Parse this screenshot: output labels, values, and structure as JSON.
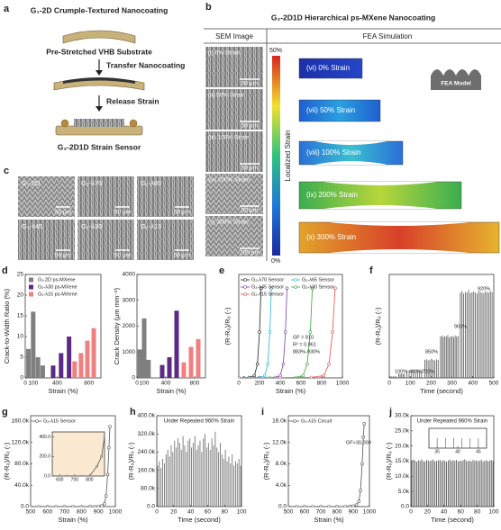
{
  "figure": {
    "a": {
      "label": "a",
      "title": "G₁-2D Crumple-Textured Nanocoating",
      "substrate": "Pre-Stretched VHB Substrate",
      "step1": "Transfer Nanocoating",
      "step2": "Release Strain",
      "result": "G₂-2D1D Strain Sensor"
    },
    "b": {
      "label": "b",
      "title": "G₂-2D1D Hierarchical ps-MXene Nanocoating",
      "sem_header": "SEM Image",
      "fea_header": "FEA Simulation",
      "sem": [
        {
          "label": "(i) 0% Strain",
          "scale": "50 μm"
        },
        {
          "label": "(ii) 50% Strain",
          "scale": "50 μm"
        },
        {
          "label": "(iii) 100% Strain",
          "scale": "50 μm"
        },
        {
          "label": "(iv) 200% Strain",
          "scale": "50 μm"
        },
        {
          "label": "(v) 300% Strain",
          "scale": "200 μm"
        }
      ],
      "colorbar": {
        "title": "Localized Strain",
        "max": "50%",
        "min": "0%"
      },
      "fea": [
        "(vi) 0% Strain",
        "(vii) 50% Strain",
        "(viii) 100% Strain",
        "(ix) 200% Strain",
        "(x) 300% Strain"
      ],
      "model": "FEA Model"
    },
    "c": {
      "label": "c",
      "images": [
        {
          "label": "G₁-2D",
          "scale": "50 μm"
        },
        {
          "label": "G₂-λ70",
          "scale": "50 μm"
        },
        {
          "label": "G₂-λ65",
          "scale": "50 μm"
        },
        {
          "label": "G₂-λ45",
          "scale": "50 μm"
        },
        {
          "label": "G₂-λ30",
          "scale": "50 μm"
        },
        {
          "label": "G₂-λ15",
          "scale": "50 μm"
        }
      ]
    }
  },
  "chart_data": [
    {
      "type": "bar",
      "panel": "d",
      "ylabel": "Crack-to-Width Ratio (%)",
      "xlabel": "Strain (%)",
      "xlim": [
        0,
        950
      ],
      "xticks": [
        0,
        100,
        400,
        800
      ],
      "ylim": [
        0,
        25
      ],
      "yticks": [
        0,
        5,
        10,
        15,
        20,
        25
      ],
      "series": [
        {
          "name": "G₁-2D ps-MXene",
          "color": "#7f7f7f",
          "x": [
            40,
            100,
            160,
            220
          ],
          "values": [
            7,
            16,
            5,
            3
          ]
        },
        {
          "name": "G₂-λ30 ps-MXene",
          "color": "#5b2a86",
          "x": [
            350,
            450,
            550
          ],
          "values": [
            3,
            6,
            10
          ]
        },
        {
          "name": "G₂-λ15 ps-MXene",
          "color": "#f08080",
          "x": [
            620,
            700,
            780,
            860
          ],
          "values": [
            4,
            6,
            9,
            12
          ]
        }
      ]
    },
    {
      "type": "bar",
      "ylabel": "Crack Density (μm mm⁻²)",
      "xlabel": "Strain (%)",
      "xlim": [
        0,
        950
      ],
      "xticks": [
        0,
        100,
        400,
        800
      ],
      "ylim": [
        0,
        4000
      ],
      "yticks": [
        0,
        1000,
        2000,
        3000,
        4000
      ],
      "series": [
        {
          "color": "#7f7f7f",
          "x": [
            40,
            100,
            160
          ],
          "values": [
            1100,
            2300,
            700
          ]
        },
        {
          "color": "#5b2a86",
          "x": [
            350,
            450,
            550
          ],
          "values": [
            500,
            800,
            2600
          ]
        },
        {
          "color": "#f08080",
          "x": [
            650,
            750,
            850
          ],
          "values": [
            600,
            1200,
            1500
          ]
        }
      ]
    },
    {
      "type": "line",
      "panel": "e",
      "ylabel": "(R-R₀)/R₀ (-)",
      "xlabel": "Strain (%)",
      "xlim": [
        0,
        1000
      ],
      "xticks": [
        0,
        200,
        400,
        600,
        800,
        1000
      ],
      "ylim": [
        0,
        450
      ],
      "annotations": [
        "GF = 810",
        "R² = 0.961",
        "883%-930%"
      ],
      "series": [
        {
          "name": "G₂-λ70 Sensor",
          "color": "#222222",
          "x": [
            0,
            50,
            100,
            150,
            180,
            200,
            215
          ],
          "values": [
            0,
            0,
            2,
            10,
            60,
            200,
            390
          ]
        },
        {
          "name": "G₂-λ65 Sensor",
          "color": "#29b6d6",
          "x": [
            0,
            100,
            200,
            250,
            280,
            300,
            315
          ],
          "values": [
            0,
            0,
            2,
            10,
            60,
            200,
            390
          ]
        },
        {
          "name": "G₂-λ45 Sensor",
          "color": "#7b3fa0",
          "x": [
            0,
            200,
            350,
            400,
            430,
            450,
            465
          ],
          "values": [
            0,
            0,
            2,
            10,
            60,
            200,
            390
          ]
        },
        {
          "name": "G₂-λ30 Sensor",
          "color": "#3aa63a",
          "x": [
            0,
            300,
            550,
            620,
            660,
            690,
            710
          ],
          "values": [
            0,
            0,
            2,
            10,
            60,
            200,
            390
          ]
        },
        {
          "name": "G₂-λ15 Sensor",
          "color": "#e0504a",
          "x": [
            0,
            400,
            700,
            820,
            870,
            905,
            930
          ],
          "values": [
            0,
            0,
            2,
            10,
            60,
            200,
            390
          ]
        }
      ]
    },
    {
      "type": "spikes",
      "panel": "f",
      "ylabel": "(R-R₀)/R₀ (-)",
      "xlabel": "Time (second)",
      "xlim": [
        0,
        500
      ],
      "xticks": [
        0,
        100,
        200,
        300,
        400,
        500
      ],
      "ylim": [
        0,
        200
      ],
      "annotations": [
        "100%",
        "400%",
        "700%",
        "850%",
        "900%",
        "920%"
      ],
      "series": [
        {
          "color": "#666666",
          "x": [
            5,
            12,
            19,
            26,
            33,
            45,
            52,
            59,
            66,
            73,
            85,
            95,
            105,
            115,
            125,
            135,
            145,
            155,
            170,
            178,
            186,
            194,
            202,
            210,
            218,
            226,
            234,
            245,
            252,
            259,
            266,
            273,
            280,
            287,
            294,
            301,
            308,
            315,
            322,
            329,
            340,
            348,
            356,
            364,
            372,
            380,
            388,
            396,
            404,
            412,
            420,
            428,
            436,
            444,
            452,
            460,
            468,
            476,
            484,
            492
          ],
          "values": [
            3,
            3,
            3,
            3,
            3,
            8,
            8,
            8,
            8,
            8,
            15,
            15,
            15,
            15,
            15,
            15,
            15,
            15,
            35,
            36,
            34,
            35,
            37,
            35,
            34,
            36,
            35,
            80,
            82,
            79,
            81,
            80,
            83,
            78,
            80,
            81,
            79,
            82,
            80,
            81,
            165,
            168,
            163,
            166,
            165,
            170,
            164,
            166,
            167,
            165,
            163,
            168,
            166,
            165,
            164,
            167,
            166,
            165,
            168,
            166
          ]
        }
      ]
    },
    {
      "type": "line",
      "panel": "g",
      "ylabel": "(R-R₀)/R₀ (-)",
      "xlabel": "Strain (%)",
      "xlim": [
        500,
        1000
      ],
      "xticks": [
        500,
        600,
        700,
        800,
        900,
        1000
      ],
      "ylim": [
        0,
        170000
      ],
      "yticks": [
        {
          "value": 0,
          "label": "0.0"
        },
        {
          "value": 40000,
          "label": "40.0k"
        },
        {
          "value": 80000,
          "label": "80.0k"
        },
        {
          "value": 120000,
          "label": "120.0k"
        },
        {
          "value": 160000,
          "label": "160.0k"
        }
      ],
      "inset": {
        "xlim": [
          550,
          900
        ],
        "xticks": [
          600,
          700,
          800
        ],
        "ylim": [
          0,
          450
        ],
        "yticks": [
          {
            "value": 0,
            "label": "0.0"
          },
          {
            "value": 200,
            "label": "200.0"
          },
          {
            "value": 400,
            "label": "400.0"
          }
        ]
      },
      "series": [
        {
          "name": "G₂-λ15 Sensor",
          "color": "#555555",
          "x": [
            500,
            550,
            600,
            650,
            700,
            750,
            800,
            850,
            880,
            900,
            920,
            935,
            945,
            955,
            962,
            968
          ],
          "values": [
            0,
            0,
            0,
            0,
            0,
            0,
            0,
            100,
            200,
            400,
            1500,
            5000,
            20000,
            60000,
            110000,
            150000
          ]
        }
      ]
    },
    {
      "type": "spikes",
      "panel": "h",
      "title": "Under Repeated 960% Strain",
      "ylabel": "(R-R₀)/R₀ (-)",
      "xlabel": "Time (second)",
      "xlim": [
        0,
        100
      ],
      "xticks": [
        0,
        20,
        40,
        60,
        80,
        100
      ],
      "ylim": [
        0,
        400000
      ],
      "yticks": [
        {
          "value": 0,
          "label": "0.0"
        },
        {
          "value": 80000,
          "label": "80.0k"
        },
        {
          "value": 160000,
          "label": "160.0k"
        },
        {
          "value": 240000,
          "label": "240.0k"
        },
        {
          "value": 320000,
          "label": "320.0k"
        },
        {
          "value": 400000,
          "label": "400.0k"
        }
      ],
      "series": [
        {
          "color": "#777777",
          "x": [
            1,
            3,
            5,
            7,
            9,
            11,
            13,
            15,
            17,
            19,
            21,
            23,
            25,
            27,
            29,
            31,
            33,
            35,
            37,
            39,
            41,
            43,
            45,
            47,
            49,
            51,
            53,
            55,
            57,
            59,
            61,
            63,
            65,
            67,
            69,
            71,
            73,
            75,
            77,
            79,
            81,
            83,
            85,
            87,
            89,
            91,
            93,
            95,
            97,
            99
          ],
          "values": [
            180000,
            200000,
            170000,
            210000,
            190000,
            230000,
            250000,
            220000,
            270000,
            240000,
            290000,
            260000,
            300000,
            280000,
            250000,
            310000,
            270000,
            240000,
            290000,
            300000,
            260000,
            280000,
            310000,
            250000,
            270000,
            290000,
            240000,
            300000,
            320000,
            260000,
            280000,
            250000,
            300000,
            270000,
            330000,
            260000,
            240000,
            280000,
            230000,
            210000,
            250000,
            200000,
            220000,
            190000,
            230000,
            180000,
            200000,
            190000,
            210000,
            180000
          ]
        }
      ]
    },
    {
      "type": "line",
      "panel": "i",
      "ylabel": "(R-R₀)/R₀ (-)",
      "xlabel": "Strain (%)",
      "xlim": [
        500,
        1000
      ],
      "xticks": [
        500,
        600,
        700,
        800,
        900,
        1000
      ],
      "ylim": [
        0,
        17000
      ],
      "yticks": [
        {
          "value": 0,
          "label": "0.0"
        },
        {
          "value": 4000,
          "label": "4.0k"
        },
        {
          "value": 8000,
          "label": "8.0k"
        },
        {
          "value": 12000,
          "label": "12.0k"
        },
        {
          "value": 16000,
          "label": "16.0k"
        }
      ],
      "annotations": [
        "GF>30,000"
      ],
      "series": [
        {
          "name": "G₂-λ15 Circuit",
          "color": "#555555",
          "x": [
            500,
            550,
            600,
            650,
            700,
            750,
            800,
            850,
            880,
            900,
            920,
            935,
            945,
            955,
            962,
            968
          ],
          "values": [
            0,
            0,
            0,
            0,
            0,
            0,
            0,
            20,
            50,
            100,
            300,
            1000,
            3000,
            8000,
            13000,
            15500
          ]
        }
      ]
    },
    {
      "type": "spikes",
      "panel": "j",
      "title": "Under Repeated 960% Strain",
      "ylabel": "(R-R₀)/R₀ (-)",
      "xlabel": "Time (second)",
      "xlim": [
        0,
        100
      ],
      "xticks": [
        0,
        20,
        40,
        60,
        80,
        100
      ],
      "ylim": [
        0,
        30000
      ],
      "yticks": [
        {
          "value": 0,
          "label": "0.0"
        },
        {
          "value": 5000,
          "label": "5.0k"
        },
        {
          "value": 10000,
          "label": "10.0k"
        },
        {
          "value": 15000,
          "label": "15.0k"
        },
        {
          "value": 20000,
          "label": "20.0k"
        },
        {
          "value": 25000,
          "label": "25.0k"
        },
        {
          "value": 30000,
          "label": "30.0k"
        }
      ],
      "inset": {
        "xlim": [
          33,
          47
        ],
        "xticks": [
          35,
          40,
          45
        ],
        "ylim": [
          0,
          30000
        ]
      },
      "series": [
        {
          "color": "#555555",
          "x": [
            1,
            3,
            5,
            7,
            9,
            11,
            13,
            15,
            17,
            19,
            21,
            23,
            25,
            27,
            29,
            31,
            33,
            35,
            37,
            39,
            41,
            43,
            45,
            47,
            49,
            51,
            53,
            55,
            57,
            59,
            61,
            63,
            65,
            67,
            69,
            71,
            73,
            75,
            77,
            79,
            81,
            83,
            85,
            87,
            89,
            91,
            93,
            95,
            97,
            99
          ],
          "values": [
            15000,
            15500,
            15200,
            14800,
            15300,
            15100,
            15600,
            15000,
            14900,
            15400,
            15200,
            15000,
            15300,
            15500,
            14900,
            15100,
            15200,
            15400,
            15000,
            15300,
            15100,
            14800,
            15200,
            15500,
            15000,
            15300,
            15100,
            15400,
            14900,
            15200,
            15000,
            15300,
            15600,
            15100,
            15000,
            15200,
            14900,
            15400,
            15100,
            15300,
            15000,
            15200,
            15500,
            14800,
            15100,
            15300,
            15000,
            15200,
            15400,
            15100
          ]
        }
      ]
    }
  ]
}
